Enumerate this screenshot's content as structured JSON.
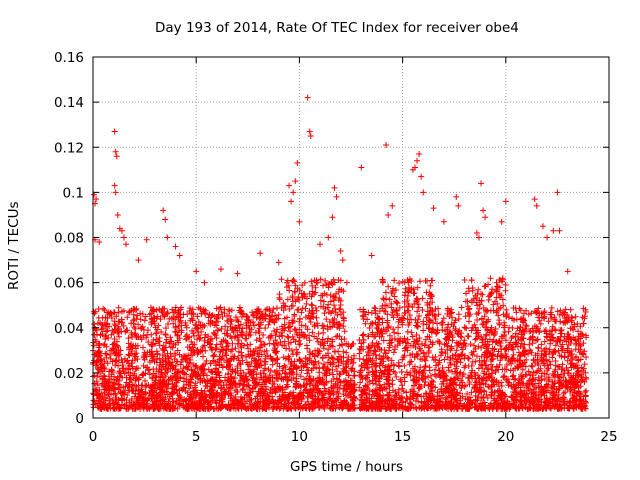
{
  "chart_data": {
    "type": "scatter",
    "title": "Day 193 of 2014, Rate Of TEC Index for receiver obe4",
    "xlabel": "GPS time / hours",
    "ylabel": "ROTI / TECUs",
    "xlim": [
      0,
      25
    ],
    "ylim": [
      0,
      0.16
    ],
    "xticks": [
      0,
      5,
      10,
      15,
      20,
      25
    ],
    "xtick_labels": [
      "0",
      "5",
      "10",
      "15",
      "20",
      "25"
    ],
    "yticks": [
      0,
      0.02,
      0.04,
      0.06,
      0.08,
      0.1,
      0.12,
      0.14,
      0.16
    ],
    "ytick_labels": [
      "0",
      "0.02",
      "0.04",
      "0.06",
      "0.08",
      "0.1",
      "0.12",
      "0.14",
      "0.16"
    ],
    "grid": true,
    "marker": "+",
    "color": "#ff0000",
    "series": [
      {
        "name": "ROTI",
        "x_range": [
          0.0,
          23.9
        ],
        "y_typical_range": [
          0.004,
          0.05
        ],
        "gap_hours": [
          12.7,
          12.9
        ],
        "points": [
          [
            0.05,
            0.099
          ],
          [
            0.1,
            0.095
          ],
          [
            0.15,
            0.097
          ],
          [
            0.1,
            0.079
          ],
          [
            0.3,
            0.078
          ],
          [
            1.05,
            0.127
          ],
          [
            1.1,
            0.118
          ],
          [
            1.15,
            0.116
          ],
          [
            1.05,
            0.103
          ],
          [
            1.1,
            0.1
          ],
          [
            1.2,
            0.09
          ],
          [
            1.3,
            0.084
          ],
          [
            1.4,
            0.083
          ],
          [
            1.5,
            0.08
          ],
          [
            1.6,
            0.077
          ],
          [
            2.2,
            0.07
          ],
          [
            2.6,
            0.079
          ],
          [
            3.4,
            0.092
          ],
          [
            3.5,
            0.088
          ],
          [
            3.6,
            0.08
          ],
          [
            4.0,
            0.076
          ],
          [
            4.2,
            0.072
          ],
          [
            5.0,
            0.065
          ],
          [
            5.4,
            0.06
          ],
          [
            6.2,
            0.066
          ],
          [
            7.0,
            0.064
          ],
          [
            8.1,
            0.073
          ],
          [
            9.0,
            0.069
          ],
          [
            9.5,
            0.103
          ],
          [
            9.6,
            0.096
          ],
          [
            9.7,
            0.1
          ],
          [
            9.8,
            0.105
          ],
          [
            9.9,
            0.113
          ],
          [
            10.0,
            0.087
          ],
          [
            10.4,
            0.142
          ],
          [
            10.5,
            0.127
          ],
          [
            10.55,
            0.125
          ],
          [
            11.0,
            0.077
          ],
          [
            11.4,
            0.08
          ],
          [
            11.6,
            0.089
          ],
          [
            11.7,
            0.102
          ],
          [
            11.8,
            0.098
          ],
          [
            12.0,
            0.074
          ],
          [
            12.1,
            0.07
          ],
          [
            12.3,
            0.06
          ],
          [
            13.0,
            0.111
          ],
          [
            13.5,
            0.072
          ],
          [
            14.2,
            0.121
          ],
          [
            14.3,
            0.09
          ],
          [
            14.5,
            0.094
          ],
          [
            15.5,
            0.11
          ],
          [
            15.6,
            0.111
          ],
          [
            15.7,
            0.114
          ],
          [
            15.8,
            0.117
          ],
          [
            15.9,
            0.107
          ],
          [
            16.0,
            0.1
          ],
          [
            16.5,
            0.093
          ],
          [
            17.0,
            0.087
          ],
          [
            17.6,
            0.098
          ],
          [
            17.7,
            0.094
          ],
          [
            18.6,
            0.082
          ],
          [
            18.7,
            0.08
          ],
          [
            18.8,
            0.104
          ],
          [
            18.9,
            0.092
          ],
          [
            19.0,
            0.089
          ],
          [
            19.8,
            0.087
          ],
          [
            20.0,
            0.096
          ],
          [
            21.4,
            0.097
          ],
          [
            21.5,
            0.094
          ],
          [
            21.8,
            0.085
          ],
          [
            22.0,
            0.08
          ],
          [
            22.3,
            0.083
          ],
          [
            22.5,
            0.1
          ],
          [
            22.6,
            0.083
          ],
          [
            23.0,
            0.065
          ]
        ]
      }
    ]
  }
}
